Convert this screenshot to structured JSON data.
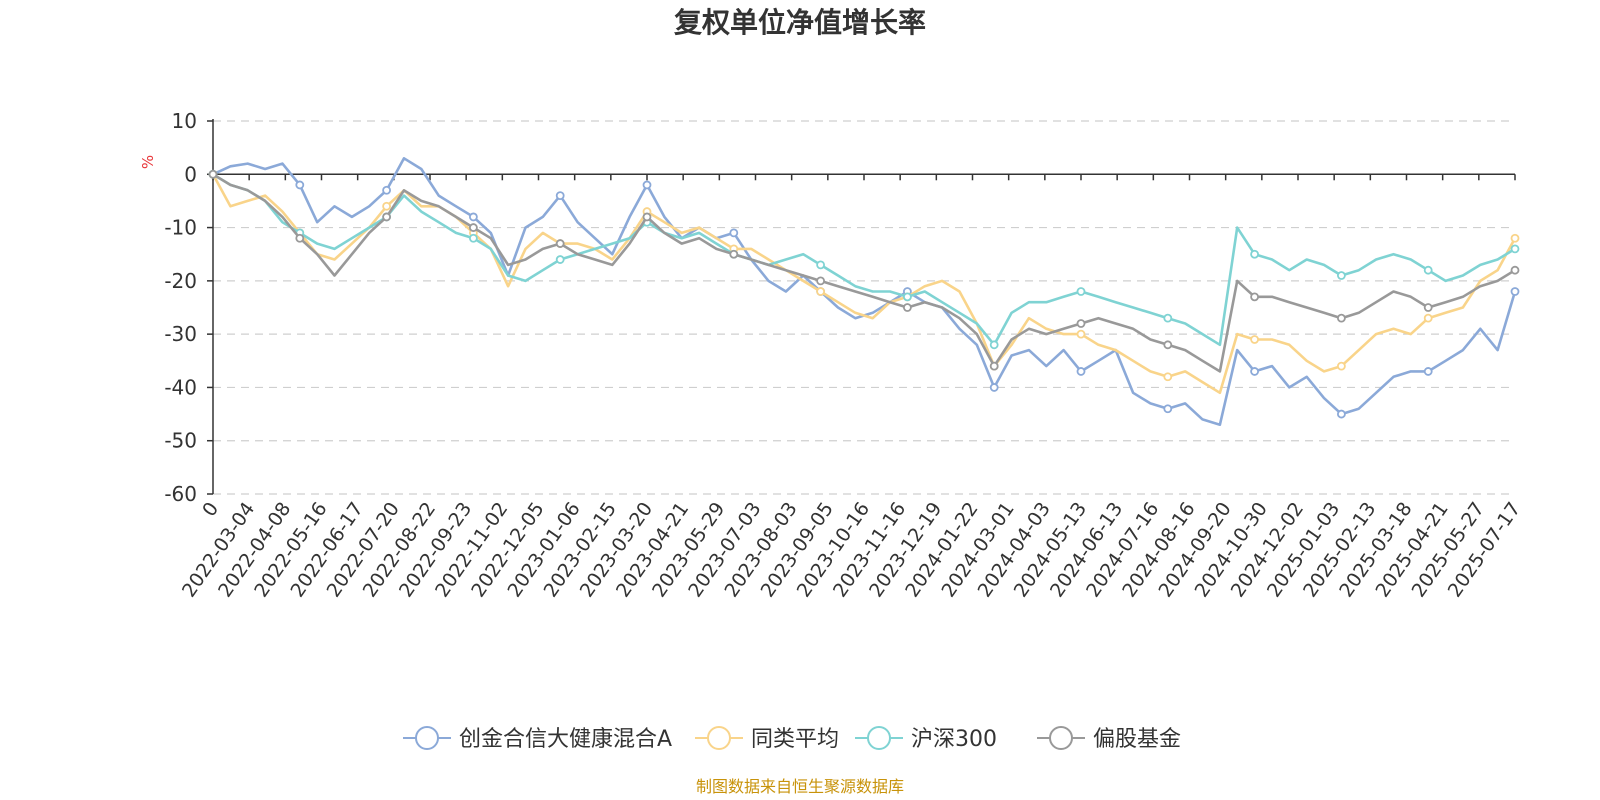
{
  "chart_data": {
    "type": "line",
    "title": "复权单位净值增长率",
    "ylabel": "%",
    "ylim": [
      -60,
      10
    ],
    "yticks": [
      10,
      0,
      -10,
      -20,
      -30,
      -40,
      -50,
      -60
    ],
    "xticks": [
      "0",
      "2022-03-04",
      "2022-04-08",
      "2022-05-16",
      "2022-06-17",
      "2022-07-20",
      "2022-08-22",
      "2022-09-23",
      "2022-11-02",
      "2022-12-05",
      "2023-01-06",
      "2023-02-15",
      "2023-03-20",
      "2023-04-21",
      "2023-05-29",
      "2023-07-03",
      "2023-08-03",
      "2023-09-05",
      "2023-10-16",
      "2023-11-16",
      "2023-12-19",
      "2024-01-22",
      "2024-03-01",
      "2024-04-03",
      "2024-05-13",
      "2024-06-13",
      "2024-07-16",
      "2024-08-16",
      "2024-09-20",
      "2024-10-30",
      "2024-12-02",
      "2025-01-03",
      "2025-02-13",
      "2025-03-18",
      "2025-04-21",
      "2025-05-27",
      "2025-07-17"
    ],
    "grid": true,
    "legend_position": "bottom",
    "series": [
      {
        "name": "创金合信大健康混合A",
        "color": "#8ba9d8",
        "values": [
          0,
          1.5,
          2,
          1,
          2,
          -2,
          -9,
          -6,
          -8,
          -6,
          -3,
          3,
          1,
          -4,
          -6,
          -8,
          -11,
          -19,
          -10,
          -8,
          -4,
          -9,
          -12,
          -15,
          -8,
          -2,
          -8,
          -12,
          -10,
          -12,
          -11,
          -16,
          -20,
          -22,
          -19,
          -22,
          -25,
          -27,
          -26,
          -24,
          -22,
          -24,
          -25,
          -29,
          -32,
          -40,
          -34,
          -33,
          -36,
          -33,
          -37,
          -35,
          -33,
          -41,
          -43,
          -44,
          -43,
          -46,
          -47,
          -33,
          -37,
          -36,
          -40,
          -38,
          -42,
          -45,
          -44,
          -41,
          -38,
          -37,
          -37,
          -35,
          -33,
          -29,
          -33,
          -22
        ]
      },
      {
        "name": "同类平均",
        "color": "#f9d48a",
        "values": [
          0,
          -6,
          -5,
          -4,
          -7,
          -11,
          -15,
          -16,
          -13,
          -10,
          -6,
          -3,
          -6,
          -6,
          -8,
          -11,
          -14,
          -21,
          -14,
          -11,
          -13,
          -13,
          -14,
          -16,
          -12,
          -7,
          -9,
          -11,
          -10,
          -12,
          -14,
          -14,
          -16,
          -18,
          -20,
          -22,
          -24,
          -26,
          -27,
          -24,
          -23,
          -21,
          -20,
          -22,
          -28,
          -36,
          -32,
          -27,
          -29,
          -30,
          -30,
          -32,
          -33,
          -35,
          -37,
          -38,
          -37,
          -39,
          -41,
          -30,
          -31,
          -31,
          -32,
          -35,
          -37,
          -36,
          -33,
          -30,
          -29,
          -30,
          -27,
          -26,
          -25,
          -20,
          -18,
          -12
        ]
      },
      {
        "name": "沪深300",
        "color": "#7fd3d3",
        "values": [
          0,
          -2,
          -3,
          -5,
          -9,
          -11,
          -13,
          -14,
          -12,
          -10,
          -8,
          -4,
          -7,
          -9,
          -11,
          -12,
          -14,
          -19,
          -20,
          -18,
          -16,
          -15,
          -14,
          -13,
          -12,
          -9,
          -11,
          -12,
          -11,
          -13,
          -15,
          -16,
          -17,
          -16,
          -15,
          -17,
          -19,
          -21,
          -22,
          -22,
          -23,
          -22,
          -24,
          -26,
          -28,
          -32,
          -26,
          -24,
          -24,
          -23,
          -22,
          -23,
          -24,
          -25,
          -26,
          -27,
          -28,
          -30,
          -32,
          -10,
          -15,
          -16,
          -18,
          -16,
          -17,
          -19,
          -18,
          -16,
          -15,
          -16,
          -18,
          -20,
          -19,
          -17,
          -16,
          -14
        ]
      },
      {
        "name": "偏股基金",
        "color": "#999999",
        "values": [
          0,
          -2,
          -3,
          -5,
          -8,
          -12,
          -15,
          -19,
          -15,
          -11,
          -8,
          -3,
          -5,
          -6,
          -8,
          -10,
          -12,
          -17,
          -16,
          -14,
          -13,
          -15,
          -16,
          -17,
          -13,
          -8,
          -11,
          -13,
          -12,
          -14,
          -15,
          -16,
          -17,
          -18,
          -19,
          -20,
          -21,
          -22,
          -23,
          -24,
          -25,
          -24,
          -25,
          -27,
          -30,
          -36,
          -31,
          -29,
          -30,
          -29,
          -28,
          -27,
          -28,
          -29,
          -31,
          -32,
          -33,
          -35,
          -37,
          -20,
          -23,
          -23,
          -24,
          -25,
          -26,
          -27,
          -26,
          -24,
          -22,
          -23,
          -25,
          -24,
          -23,
          -21,
          -20,
          -18
        ]
      }
    ],
    "source": "制图数据来自恒生聚源数据库"
  }
}
